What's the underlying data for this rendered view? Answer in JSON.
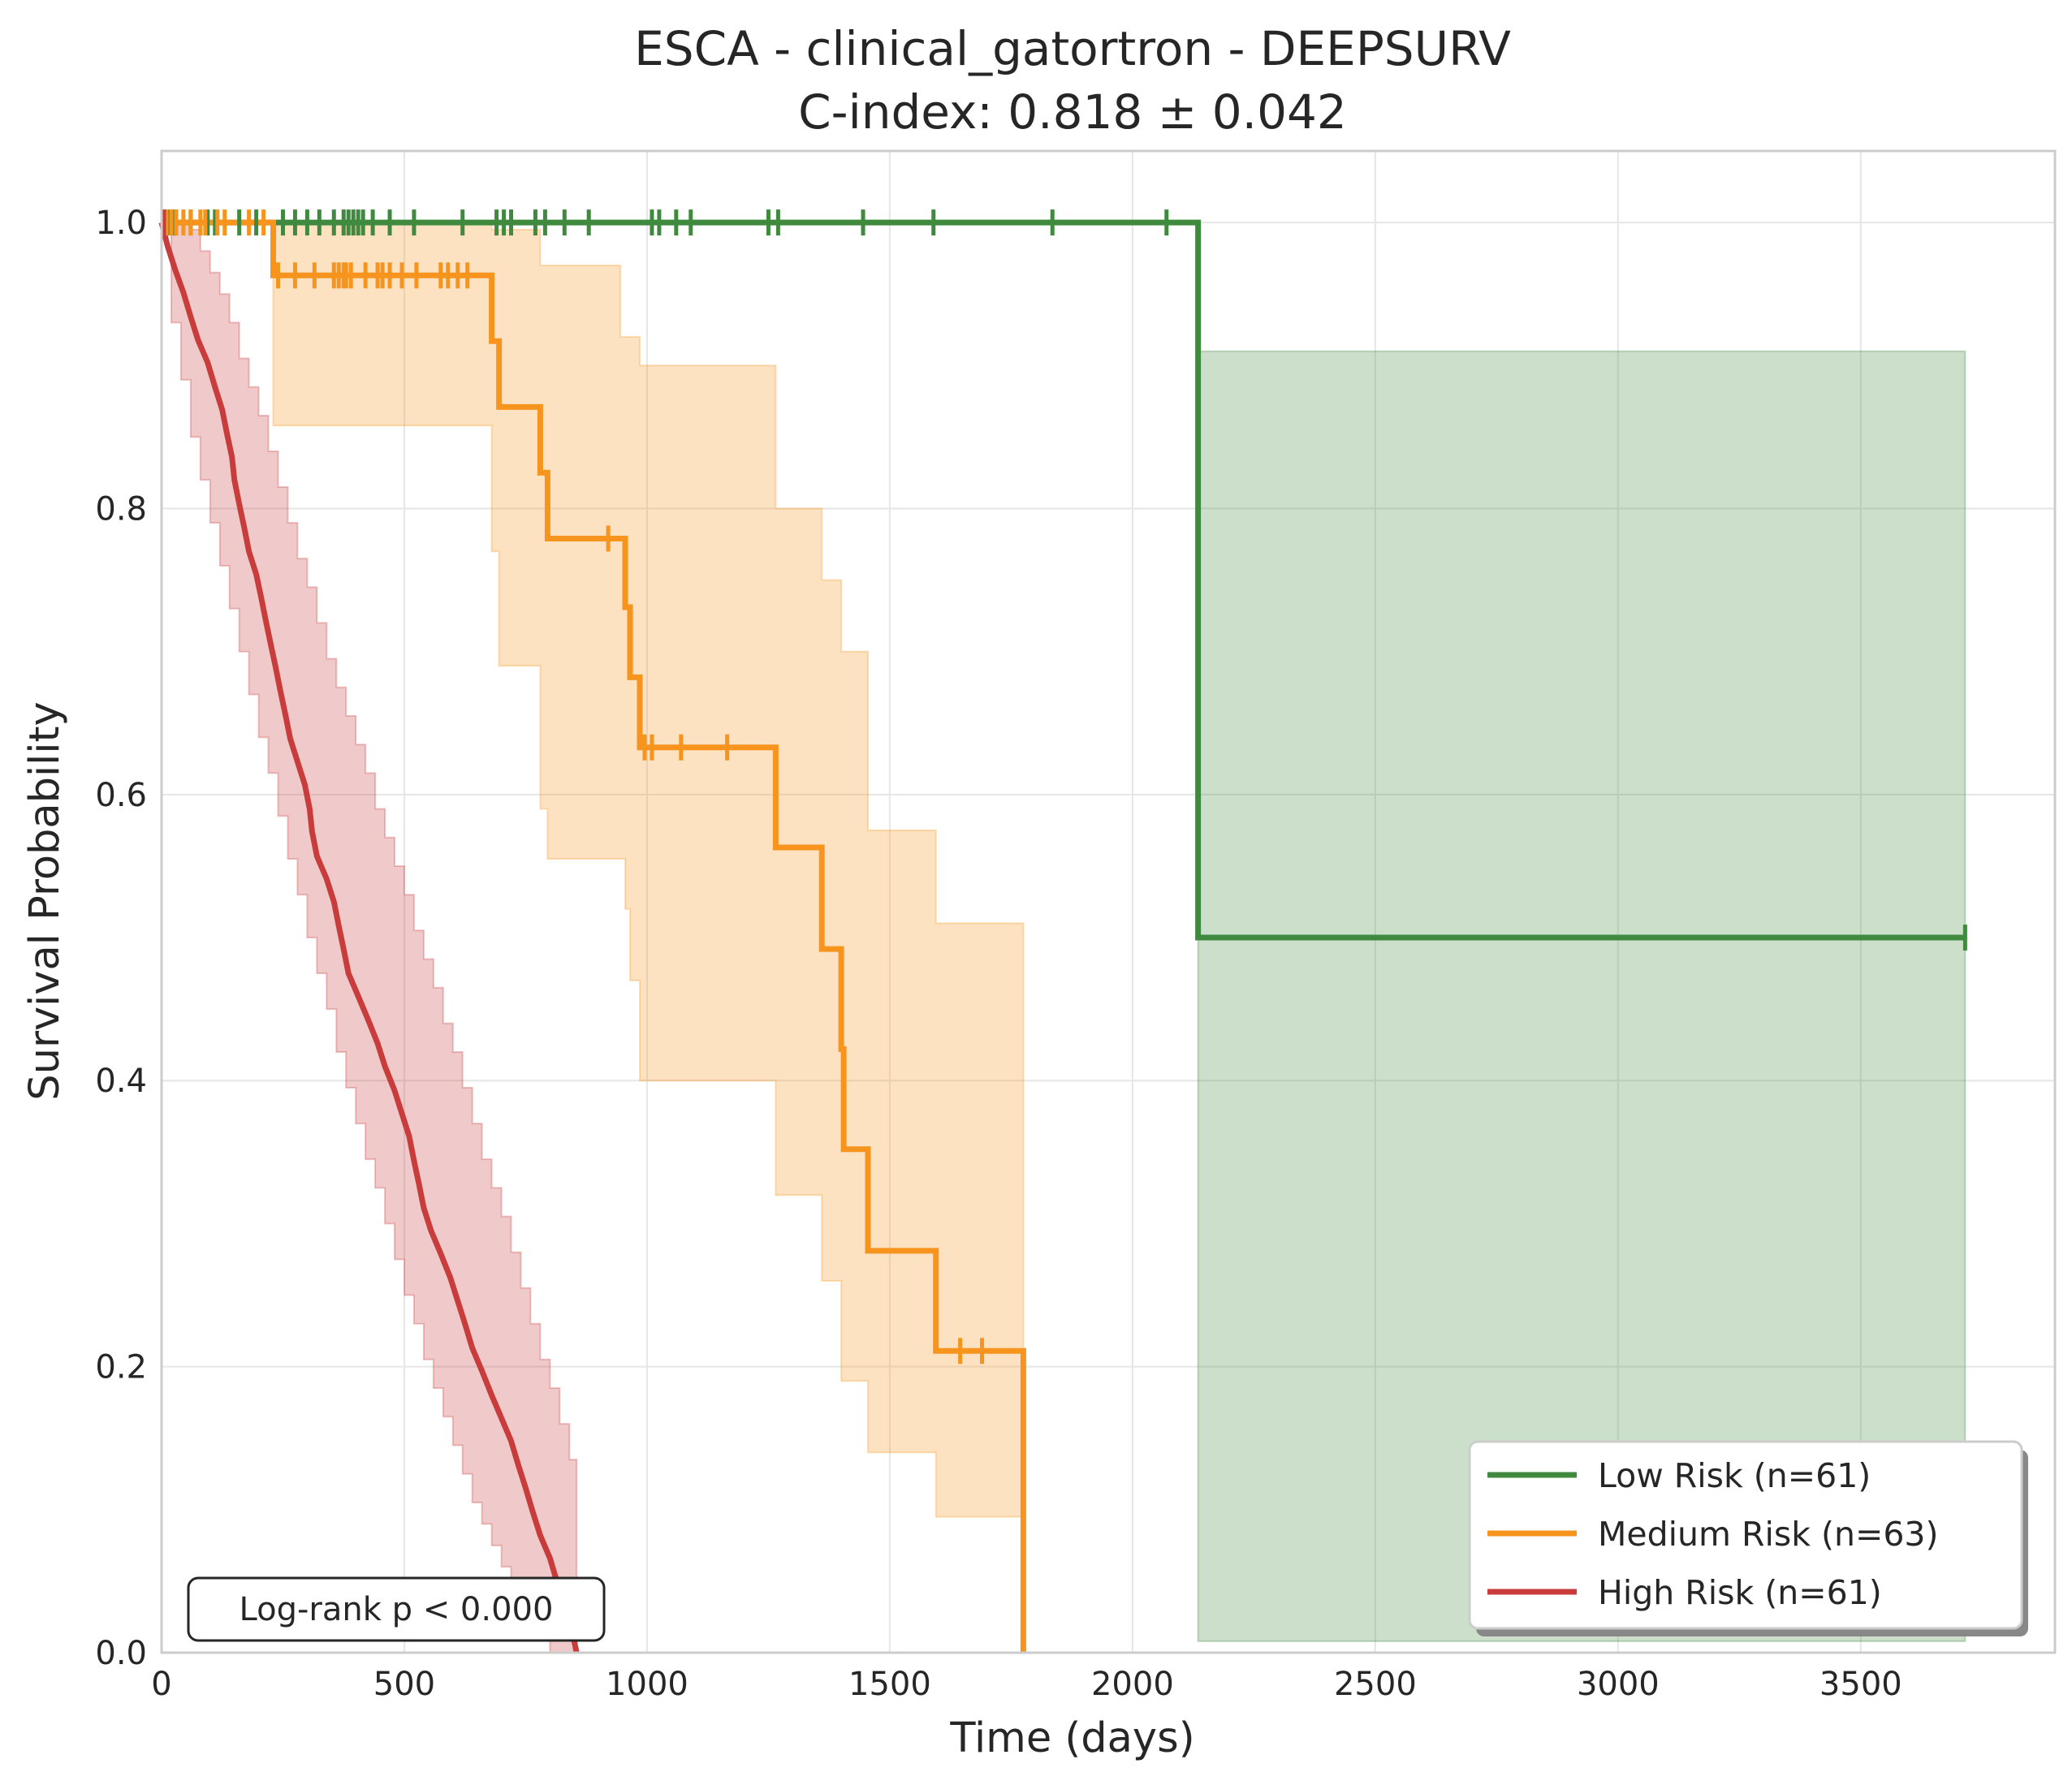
{
  "chart_data": {
    "type": "line",
    "title": "ESCA - clinical_gatortron - DEEPSURV",
    "subtitle": "C-index: 0.818 ± 0.042",
    "xlabel": "Time (days)",
    "ylabel": "Survival Probability",
    "xlim": [
      0,
      3900
    ],
    "ylim": [
      0,
      1.05
    ],
    "xticks": [
      0,
      500,
      1000,
      1500,
      2000,
      2500,
      3000,
      3500
    ],
    "yticks": [
      0.0,
      0.2,
      0.4,
      0.6,
      0.8,
      1.0
    ],
    "xtick_labels": [
      "0",
      "500",
      "1000",
      "1500",
      "2000",
      "2500",
      "3000",
      "3500"
    ],
    "ytick_labels": [
      "0.0",
      "0.2",
      "0.4",
      "0.6",
      "0.8",
      "1.0"
    ],
    "grid": true,
    "legend_position": "lower-right",
    "annotation": "Log-rank p < 0.000",
    "series": [
      {
        "name": "Low Risk (n=61)",
        "color": "#3f8a3f",
        "steps": [
          [
            0,
            1.0
          ],
          [
            2135,
            1.0
          ],
          [
            2135,
            0.5
          ],
          [
            3715,
            0.5
          ]
        ],
        "ci_upper": [
          [
            2135,
            0.91
          ],
          [
            3715,
            0.91
          ]
        ],
        "ci_lower": [
          [
            2135,
            0.008
          ],
          [
            3715,
            0.008
          ]
        ],
        "censored": [
          [
            8,
            1.0
          ],
          [
            15,
            1.0
          ],
          [
            25,
            1.0
          ],
          [
            30,
            1.0
          ],
          [
            60,
            1.0
          ],
          [
            95,
            1.0
          ],
          [
            110,
            1.0
          ],
          [
            160,
            1.0
          ],
          [
            195,
            1.0
          ],
          [
            250,
            1.0
          ],
          [
            275,
            1.0
          ],
          [
            300,
            1.0
          ],
          [
            325,
            1.0
          ],
          [
            355,
            1.0
          ],
          [
            375,
            1.0
          ],
          [
            385,
            1.0
          ],
          [
            395,
            1.0
          ],
          [
            405,
            1.0
          ],
          [
            415,
            1.0
          ],
          [
            435,
            1.0
          ],
          [
            470,
            1.0
          ],
          [
            520,
            1.0
          ],
          [
            620,
            1.0
          ],
          [
            690,
            1.0
          ],
          [
            705,
            1.0
          ],
          [
            720,
            1.0
          ],
          [
            770,
            1.0
          ],
          [
            790,
            1.0
          ],
          [
            830,
            1.0
          ],
          [
            880,
            1.0
          ],
          [
            1010,
            1.0
          ],
          [
            1025,
            1.0
          ],
          [
            1060,
            1.0
          ],
          [
            1090,
            1.0
          ],
          [
            1250,
            1.0
          ],
          [
            1270,
            1.0
          ],
          [
            1445,
            1.0
          ],
          [
            1590,
            1.0
          ],
          [
            1835,
            1.0
          ],
          [
            2070,
            1.0
          ],
          [
            3715,
            0.5
          ]
        ]
      },
      {
        "name": "Medium Risk (n=63)",
        "color": "#f7941d",
        "steps": [
          [
            0,
            1.0
          ],
          [
            230,
            1.0
          ],
          [
            230,
            0.963
          ],
          [
            680,
            0.963
          ],
          [
            680,
            0.917
          ],
          [
            695,
            0.917
          ],
          [
            695,
            0.871
          ],
          [
            780,
            0.871
          ],
          [
            780,
            0.825
          ],
          [
            795,
            0.825
          ],
          [
            795,
            0.779
          ],
          [
            955,
            0.779
          ],
          [
            955,
            0.731
          ],
          [
            965,
            0.731
          ],
          [
            965,
            0.682
          ],
          [
            985,
            0.682
          ],
          [
            985,
            0.633
          ],
          [
            1265,
            0.633
          ],
          [
            1265,
            0.563
          ],
          [
            1360,
            0.563
          ],
          [
            1360,
            0.492
          ],
          [
            1400,
            0.492
          ],
          [
            1400,
            0.422
          ],
          [
            1405,
            0.422
          ],
          [
            1405,
            0.352
          ],
          [
            1455,
            0.352
          ],
          [
            1455,
            0.281
          ],
          [
            1595,
            0.281
          ],
          [
            1595,
            0.211
          ],
          [
            1775,
            0.211
          ],
          [
            1775,
            0.0
          ]
        ],
        "ci_upper": [
          [
            230,
            1.0
          ],
          [
            680,
            1.0
          ],
          [
            680,
            0.995
          ],
          [
            780,
            0.97
          ],
          [
            795,
            0.97
          ],
          [
            945,
            0.92
          ],
          [
            985,
            0.9
          ],
          [
            1265,
            0.8
          ],
          [
            1360,
            0.75
          ],
          [
            1400,
            0.7
          ],
          [
            1455,
            0.575
          ],
          [
            1595,
            0.51
          ],
          [
            1775,
            0.437
          ]
        ],
        "ci_lower": [
          [
            230,
            0.858
          ],
          [
            680,
            0.858
          ],
          [
            680,
            0.77
          ],
          [
            695,
            0.69
          ],
          [
            780,
            0.59
          ],
          [
            795,
            0.555
          ],
          [
            955,
            0.52
          ],
          [
            965,
            0.47
          ],
          [
            985,
            0.4
          ],
          [
            1265,
            0.32
          ],
          [
            1360,
            0.26
          ],
          [
            1400,
            0.19
          ],
          [
            1455,
            0.14
          ],
          [
            1595,
            0.095
          ],
          [
            1775,
            0.05
          ]
        ],
        "censored": [
          [
            10,
            1.0
          ],
          [
            20,
            1.0
          ],
          [
            30,
            1.0
          ],
          [
            45,
            1.0
          ],
          [
            60,
            1.0
          ],
          [
            80,
            1.0
          ],
          [
            90,
            1.0
          ],
          [
            115,
            1.0
          ],
          [
            130,
            1.0
          ],
          [
            180,
            1.0
          ],
          [
            210,
            1.0
          ],
          [
            240,
            0.963
          ],
          [
            275,
            0.963
          ],
          [
            315,
            0.963
          ],
          [
            355,
            0.963
          ],
          [
            365,
            0.963
          ],
          [
            375,
            0.963
          ],
          [
            380,
            0.963
          ],
          [
            390,
            0.963
          ],
          [
            420,
            0.963
          ],
          [
            445,
            0.963
          ],
          [
            455,
            0.963
          ],
          [
            470,
            0.963
          ],
          [
            495,
            0.963
          ],
          [
            525,
            0.963
          ],
          [
            575,
            0.963
          ],
          [
            590,
            0.963
          ],
          [
            610,
            0.963
          ],
          [
            630,
            0.963
          ],
          [
            920,
            0.779
          ],
          [
            995,
            0.633
          ],
          [
            1010,
            0.633
          ],
          [
            1070,
            0.633
          ],
          [
            1165,
            0.633
          ],
          [
            1645,
            0.211
          ],
          [
            1690,
            0.211
          ]
        ]
      },
      {
        "name": "High Risk (n=61)",
        "color": "#c83c3c",
        "steps": [
          [
            0,
            1.0
          ],
          [
            12,
            0.984
          ],
          [
            28,
            0.967
          ],
          [
            45,
            0.951
          ],
          [
            60,
            0.934
          ],
          [
            75,
            0.918
          ],
          [
            95,
            0.902
          ],
          [
            110,
            0.885
          ],
          [
            125,
            0.869
          ],
          [
            135,
            0.852
          ],
          [
            145,
            0.836
          ],
          [
            150,
            0.82
          ],
          [
            160,
            0.803
          ],
          [
            170,
            0.787
          ],
          [
            180,
            0.77
          ],
          [
            195,
            0.754
          ],
          [
            205,
            0.738
          ],
          [
            215,
            0.721
          ],
          [
            225,
            0.705
          ],
          [
            235,
            0.689
          ],
          [
            245,
            0.672
          ],
          [
            255,
            0.656
          ],
          [
            265,
            0.639
          ],
          [
            280,
            0.623
          ],
          [
            295,
            0.607
          ],
          [
            305,
            0.59
          ],
          [
            310,
            0.574
          ],
          [
            320,
            0.557
          ],
          [
            340,
            0.541
          ],
          [
            355,
            0.525
          ],
          [
            365,
            0.508
          ],
          [
            375,
            0.492
          ],
          [
            385,
            0.475
          ],
          [
            405,
            0.459
          ],
          [
            425,
            0.443
          ],
          [
            445,
            0.426
          ],
          [
            460,
            0.41
          ],
          [
            480,
            0.393
          ],
          [
            495,
            0.377
          ],
          [
            510,
            0.361
          ],
          [
            520,
            0.344
          ],
          [
            530,
            0.328
          ],
          [
            540,
            0.311
          ],
          [
            555,
            0.295
          ],
          [
            575,
            0.279
          ],
          [
            595,
            0.262
          ],
          [
            610,
            0.246
          ],
          [
            625,
            0.23
          ],
          [
            640,
            0.213
          ],
          [
            660,
            0.197
          ],
          [
            680,
            0.18
          ],
          [
            700,
            0.164
          ],
          [
            720,
            0.148
          ],
          [
            735,
            0.131
          ],
          [
            750,
            0.115
          ],
          [
            765,
            0.098
          ],
          [
            780,
            0.082
          ],
          [
            800,
            0.066
          ],
          [
            815,
            0.049
          ],
          [
            830,
            0.033
          ],
          [
            845,
            0.016
          ],
          [
            855,
            0.0
          ]
        ],
        "ci_upper": [
          [
            0,
            1.0
          ],
          [
            40,
            1.0
          ],
          [
            60,
            0.995
          ],
          [
            80,
            0.98
          ],
          [
            100,
            0.965
          ],
          [
            120,
            0.95
          ],
          [
            140,
            0.93
          ],
          [
            160,
            0.905
          ],
          [
            180,
            0.885
          ],
          [
            200,
            0.865
          ],
          [
            220,
            0.84
          ],
          [
            240,
            0.815
          ],
          [
            260,
            0.79
          ],
          [
            280,
            0.765
          ],
          [
            300,
            0.745
          ],
          [
            320,
            0.72
          ],
          [
            340,
            0.695
          ],
          [
            360,
            0.675
          ],
          [
            380,
            0.655
          ],
          [
            400,
            0.635
          ],
          [
            420,
            0.615
          ],
          [
            440,
            0.59
          ],
          [
            460,
            0.57
          ],
          [
            480,
            0.55
          ],
          [
            500,
            0.53
          ],
          [
            520,
            0.505
          ],
          [
            540,
            0.485
          ],
          [
            560,
            0.465
          ],
          [
            580,
            0.44
          ],
          [
            600,
            0.42
          ],
          [
            620,
            0.395
          ],
          [
            640,
            0.37
          ],
          [
            660,
            0.345
          ],
          [
            680,
            0.325
          ],
          [
            700,
            0.305
          ],
          [
            720,
            0.28
          ],
          [
            740,
            0.255
          ],
          [
            760,
            0.23
          ],
          [
            780,
            0.205
          ],
          [
            800,
            0.185
          ],
          [
            820,
            0.16
          ],
          [
            840,
            0.135
          ],
          [
            855,
            0.11
          ]
        ],
        "ci_lower": [
          [
            0,
            1.0
          ],
          [
            20,
            0.93
          ],
          [
            40,
            0.89
          ],
          [
            60,
            0.85
          ],
          [
            80,
            0.82
          ],
          [
            100,
            0.79
          ],
          [
            120,
            0.76
          ],
          [
            140,
            0.73
          ],
          [
            160,
            0.7
          ],
          [
            180,
            0.67
          ],
          [
            200,
            0.64
          ],
          [
            220,
            0.615
          ],
          [
            240,
            0.585
          ],
          [
            260,
            0.555
          ],
          [
            280,
            0.53
          ],
          [
            300,
            0.5
          ],
          [
            320,
            0.475
          ],
          [
            340,
            0.45
          ],
          [
            360,
            0.42
          ],
          [
            380,
            0.395
          ],
          [
            400,
            0.37
          ],
          [
            420,
            0.345
          ],
          [
            440,
            0.325
          ],
          [
            460,
            0.3
          ],
          [
            480,
            0.275
          ],
          [
            500,
            0.25
          ],
          [
            520,
            0.23
          ],
          [
            540,
            0.205
          ],
          [
            560,
            0.185
          ],
          [
            580,
            0.165
          ],
          [
            600,
            0.145
          ],
          [
            620,
            0.125
          ],
          [
            640,
            0.105
          ],
          [
            660,
            0.09
          ],
          [
            680,
            0.075
          ],
          [
            700,
            0.06
          ],
          [
            720,
            0.045
          ],
          [
            740,
            0.035
          ],
          [
            760,
            0.02
          ],
          [
            780,
            0.01
          ],
          [
            800,
            0.0
          ],
          [
            855,
            0.0
          ]
        ],
        "censored": [
          [
            5,
            1.0
          ]
        ]
      }
    ]
  }
}
